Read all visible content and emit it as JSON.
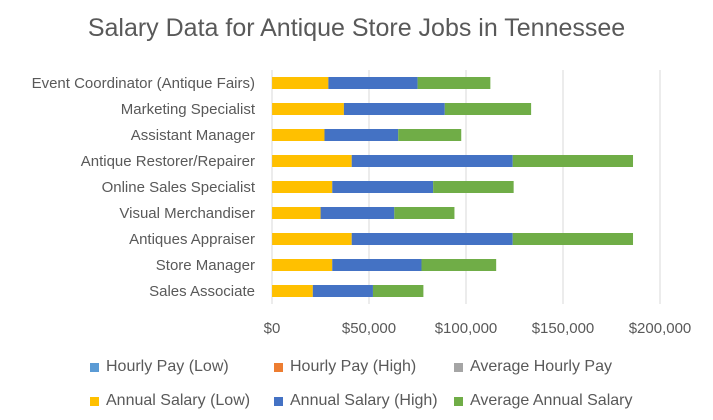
{
  "chart_data": {
    "type": "bar",
    "orientation": "horizontal",
    "stacked": true,
    "title": "Salary Data for Antique Store Jobs in Tennessee",
    "categories": [
      "Event Coordinator (Antique Fairs)",
      "Marketing Specialist",
      "Assistant Manager",
      "Antique Restorer/Repairer",
      "Online Sales Specialist",
      "Visual Merchandiser",
      "Antiques Appraiser",
      "Store Manager",
      "Sales Associate"
    ],
    "series": [
      {
        "name": "Hourly Pay (Low)",
        "color": "#5B9BD5",
        "values": [
          14,
          17,
          13,
          20,
          15,
          12,
          20,
          15,
          10
        ]
      },
      {
        "name": "Hourly Pay (High)",
        "color": "#ED7D31",
        "values": [
          22,
          26,
          18,
          40,
          25,
          18,
          40,
          22,
          15
        ]
      },
      {
        "name": "Average Hourly Pay",
        "color": "#A5A5A5",
        "values": [
          18,
          21.5,
          15.5,
          30,
          20,
          15,
          30,
          18.5,
          12.5
        ]
      },
      {
        "name": "Annual Salary (Low)",
        "color": "#FFC000",
        "values": [
          29000,
          37000,
          27000,
          41000,
          31000,
          25000,
          41000,
          31000,
          21000
        ]
      },
      {
        "name": "Annual Salary (High)",
        "color": "#4472C4",
        "values": [
          46000,
          52000,
          38000,
          83000,
          52000,
          38000,
          83000,
          46000,
          31000
        ]
      },
      {
        "name": "Average Annual Salary",
        "color": "#70AD47",
        "values": [
          37500,
          44500,
          32500,
          62000,
          41500,
          31000,
          62000,
          38500,
          26000
        ]
      }
    ],
    "xlim": [
      0,
      200000
    ],
    "xticks": [
      "$0",
      "$50,000",
      "$100,000",
      "$150,000",
      "$200,000"
    ],
    "xtick_values": [
      0,
      50000,
      100000,
      150000,
      200000
    ],
    "grid": true,
    "legend_position": "bottom"
  }
}
